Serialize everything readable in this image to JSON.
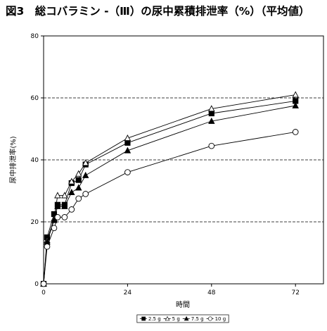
{
  "figure_title": "図3　総コバラミン -（Ⅲ）の尿中累積排泄率（%）（平均値）",
  "chart_data": {
    "type": "line",
    "xlabel": "時間",
    "ylabel": "尿中排泄率(%)",
    "xlim": [
      0,
      72
    ],
    "ylim": [
      0,
      80
    ],
    "x_ticks": [
      0,
      24,
      48,
      72
    ],
    "y_ticks": [
      0,
      20,
      40,
      60,
      80
    ],
    "grid": "horizontal dashed at 20, 40, 60",
    "legend_position": "bottom-center",
    "x": [
      0,
      1,
      3,
      4,
      6,
      8,
      10,
      12,
      24,
      48,
      72
    ],
    "series": [
      {
        "name": "2.5 g",
        "marker": "filled-square",
        "values": [
          0,
          15,
          22.5,
          25.5,
          25.5,
          32.5,
          33.5,
          38.5,
          45.5,
          55,
          59
        ]
      },
      {
        "name": "5 g",
        "marker": "open-triangle",
        "values": [
          0,
          14,
          21,
          28.5,
          28.5,
          33,
          35.5,
          39,
          47,
          56.5,
          61
        ]
      },
      {
        "name": "7.5 g",
        "marker": "filled-triangle",
        "values": [
          0,
          13.5,
          20.5,
          25,
          25,
          29.5,
          31,
          35,
          43,
          52.5,
          57.5
        ]
      },
      {
        "name": "10 g",
        "marker": "open-circle",
        "values": [
          0,
          12,
          18,
          21.5,
          21.5,
          24,
          27.5,
          29,
          36,
          44.5,
          49
        ]
      }
    ]
  }
}
